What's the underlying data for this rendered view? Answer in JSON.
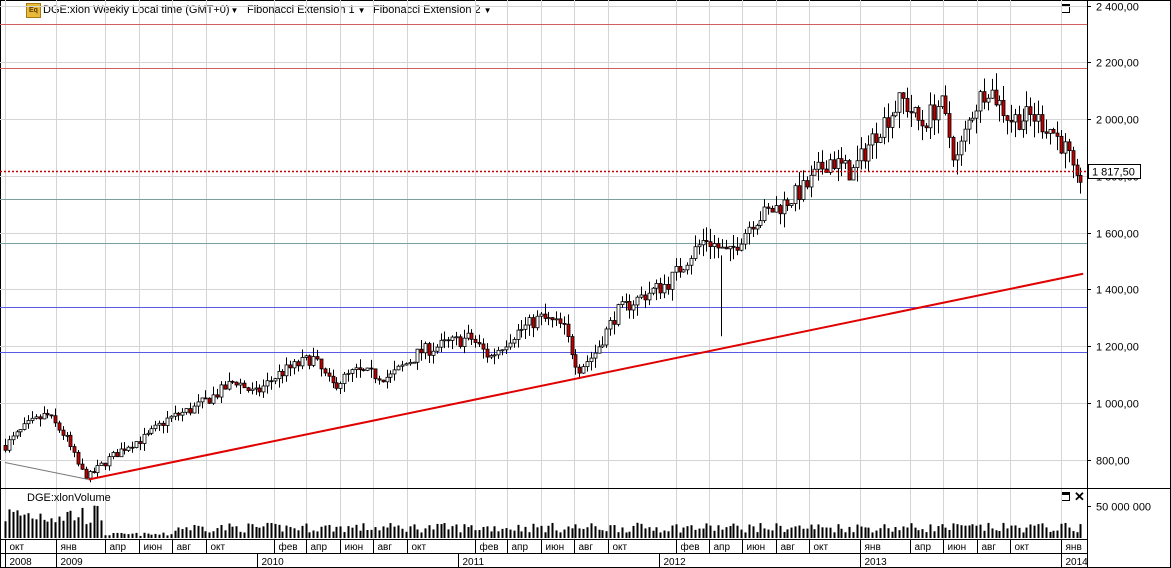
{
  "header": {
    "series_label": "DGE:xlon Weekly Local time (GMT+0)",
    "ext1_label": "Fibonacci Extension 1",
    "ext2_label": "Fibonacci Extension 2"
  },
  "volume_pane": {
    "label": "DGE:xlonVolume"
  },
  "colors": {
    "up_candle": "#ffffff",
    "down_candle": "#c00000",
    "trendline": "#e00000",
    "current_price_line": "#cc0000",
    "fib_line_red": "#d06060",
    "fib_line_blue": "#5a5ae6",
    "fib_line_gray": "#7f9f9f",
    "grid": "#d4d4d4"
  },
  "chart_data": {
    "type": "candlestick",
    "price_axis": {
      "range": [
        700,
        2420
      ],
      "ticks": [
        "2 400,00",
        "2 200,00",
        "2 000,00",
        "1 800,00",
        "1 600,00",
        "1 400,00",
        "1 200,00",
        "1 000,00",
        "800,00"
      ],
      "tick_values": [
        2400,
        2200,
        2000,
        1800,
        1600,
        1400,
        1200,
        1000,
        800
      ]
    },
    "current_price": {
      "value": 1817.5,
      "label": "1 817,50"
    },
    "fib_levels": [
      {
        "value": 2335,
        "color": "#d06060"
      },
      {
        "value": 2182,
        "color": "#d06060"
      },
      {
        "value": 1719,
        "color": "#7f9f9f"
      },
      {
        "value": 1565,
        "color": "#7f9f9f"
      },
      {
        "value": 1338,
        "color": "#5a5ae6"
      },
      {
        "value": 1178,
        "color": "#5a5ae6"
      }
    ],
    "trendline": {
      "from": {
        "date": "2009-03-02",
        "price": 730
      },
      "to": {
        "date": "2014-02-10",
        "price": 1455
      }
    },
    "fib_base_line": {
      "from": {
        "date": "2008-10-01",
        "price": 790
      },
      "to": {
        "date": "2009-03-02",
        "price": 730
      }
    },
    "price_path": [
      [
        "2008-10-01",
        850
      ],
      [
        "2008-11-10",
        920
      ],
      [
        "2008-12-15",
        960
      ],
      [
        "2009-01-19",
        880
      ],
      [
        "2009-02-16",
        760
      ],
      [
        "2009-03-02",
        740
      ],
      [
        "2009-04-06",
        800
      ],
      [
        "2009-05-11",
        850
      ],
      [
        "2009-06-15",
        880
      ],
      [
        "2009-07-20",
        940
      ],
      [
        "2009-09-07",
        980
      ],
      [
        "2009-10-19",
        1030
      ],
      [
        "2009-11-23",
        1080
      ],
      [
        "2009-12-28",
        1030
      ],
      [
        "2010-02-08",
        1100
      ],
      [
        "2010-04-12",
        1160
      ],
      [
        "2010-05-17",
        1060
      ],
      [
        "2010-06-28",
        1110
      ],
      [
        "2010-08-30",
        1090
      ],
      [
        "2010-10-25",
        1180
      ],
      [
        "2010-12-13",
        1210
      ],
      [
        "2011-01-24",
        1230
      ],
      [
        "2011-02-28",
        1160
      ],
      [
        "2011-04-11",
        1240
      ],
      [
        "2011-05-30",
        1300
      ],
      [
        "2011-07-11",
        1270
      ],
      [
        "2011-08-08",
        1120
      ],
      [
        "2011-09-05",
        1170
      ],
      [
        "2011-10-17",
        1320
      ],
      [
        "2011-12-05",
        1380
      ],
      [
        "2012-01-16",
        1420
      ],
      [
        "2012-02-27",
        1520
      ],
      [
        "2012-03-26",
        1580
      ],
      [
        "2012-05-07",
        1520
      ],
      [
        "2012-06-18",
        1640
      ],
      [
        "2012-08-13",
        1700
      ],
      [
        "2012-09-24",
        1760
      ],
      [
        "2012-11-05",
        1860
      ],
      [
        "2012-12-17",
        1810
      ],
      [
        "2013-02-04",
        1970
      ],
      [
        "2013-03-18",
        2070
      ],
      [
        "2013-04-22",
        1980
      ],
      [
        "2013-05-27",
        2060
      ],
      [
        "2013-06-24",
        1850
      ],
      [
        "2013-07-22",
        2020
      ],
      [
        "2013-08-19",
        2120
      ],
      [
        "2013-09-30",
        2000
      ],
      [
        "2013-11-11",
        2010
      ],
      [
        "2013-12-16",
        1960
      ],
      [
        "2014-01-13",
        1880
      ],
      [
        "2014-01-27",
        1760
      ],
      [
        "2014-02-10",
        1817
      ]
    ],
    "volume_axis": {
      "ticks": [
        "50 000 000"
      ],
      "tick_values": [
        50000000
      ],
      "range": [
        0,
        75000000
      ]
    },
    "time_axis": {
      "start": "2008-09-22",
      "end": "2014-02-17",
      "months": [
        {
          "date": "2008-10-01",
          "label": "окт"
        },
        {
          "date": "2009-01-01",
          "label": "янв"
        },
        {
          "date": "2009-04-01",
          "label": "апр"
        },
        {
          "date": "2009-06-01",
          "label": "июн"
        },
        {
          "date": "2009-08-01",
          "label": "авг"
        },
        {
          "date": "2009-10-01",
          "label": "окт"
        },
        {
          "date": "2010-02-01",
          "label": "фев"
        },
        {
          "date": "2010-04-01",
          "label": "апр"
        },
        {
          "date": "2010-06-01",
          "label": "июн"
        },
        {
          "date": "2010-08-01",
          "label": "авг"
        },
        {
          "date": "2010-10-01",
          "label": "окт"
        },
        {
          "date": "2011-02-01",
          "label": "фев"
        },
        {
          "date": "2011-04-01",
          "label": "апр"
        },
        {
          "date": "2011-06-01",
          "label": "июн"
        },
        {
          "date": "2011-08-01",
          "label": "авг"
        },
        {
          "date": "2011-10-01",
          "label": "окт"
        },
        {
          "date": "2012-02-01",
          "label": "фев"
        },
        {
          "date": "2012-04-01",
          "label": "апр"
        },
        {
          "date": "2012-06-01",
          "label": "июн"
        },
        {
          "date": "2012-08-01",
          "label": "авг"
        },
        {
          "date": "2012-10-01",
          "label": "окт"
        },
        {
          "date": "2013-01-01",
          "label": "янв"
        },
        {
          "date": "2013-04-01",
          "label": "апр"
        },
        {
          "date": "2013-06-01",
          "label": "июн"
        },
        {
          "date": "2013-08-01",
          "label": "авг"
        },
        {
          "date": "2013-10-01",
          "label": "окт"
        },
        {
          "date": "2014-01-01",
          "label": "янв"
        }
      ],
      "years": [
        {
          "date": "2008-10-01",
          "label": "2008"
        },
        {
          "date": "2009-01-01",
          "label": "2009"
        },
        {
          "date": "2010-01-01",
          "label": "2010"
        },
        {
          "date": "2011-01-01",
          "label": "2011"
        },
        {
          "date": "2012-01-01",
          "label": "2012"
        },
        {
          "date": "2013-01-01",
          "label": "2013"
        },
        {
          "date": "2014-01-01",
          "label": "2014"
        }
      ]
    }
  }
}
